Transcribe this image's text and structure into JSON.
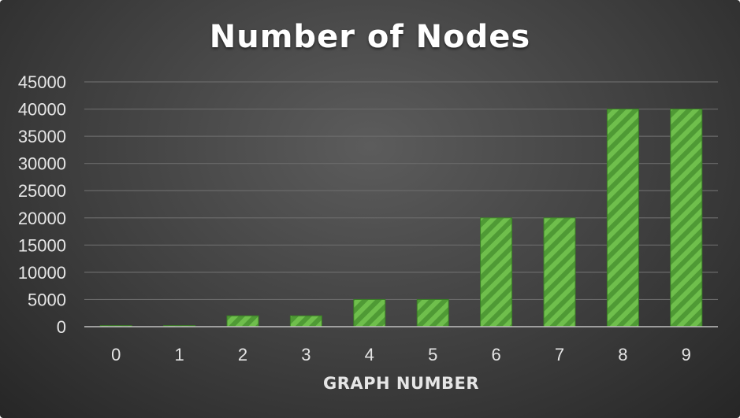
{
  "chart_data": {
    "type": "bar",
    "title": "Number of Nodes",
    "xlabel": "GRAPH NUMBER",
    "ylabel": "",
    "categories": [
      "0",
      "1",
      "2",
      "3",
      "4",
      "5",
      "6",
      "7",
      "8",
      "9"
    ],
    "values": [
      200,
      200,
      2000,
      2000,
      5000,
      5000,
      20000,
      20000,
      40000,
      40000
    ],
    "ylim": [
      0,
      45000
    ],
    "yticks": [
      0,
      5000,
      10000,
      15000,
      20000,
      25000,
      30000,
      35000,
      40000,
      45000
    ],
    "grid": true,
    "legend": "none",
    "colors": {
      "bar_fill": "#4f9a35",
      "bar_stripe": "#6fbf4c",
      "bar_edge": "#3a7d26",
      "gridline": "#6a6a6a",
      "axis": "#bfbfbf"
    }
  }
}
